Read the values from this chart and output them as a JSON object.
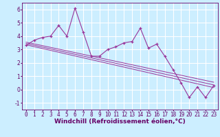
{
  "title": "",
  "xlabel": "Windchill (Refroidissement éolien,°C)",
  "ylabel": "",
  "bg_color": "#cceeff",
  "grid_color": "#ffffff",
  "line_color": "#993399",
  "xlim": [
    -0.5,
    23.5
  ],
  "ylim": [
    -1.5,
    6.5
  ],
  "yticks": [
    -1,
    0,
    1,
    2,
    3,
    4,
    5,
    6
  ],
  "xticks": [
    0,
    1,
    2,
    3,
    4,
    5,
    6,
    7,
    8,
    9,
    10,
    11,
    12,
    13,
    14,
    15,
    16,
    17,
    18,
    19,
    20,
    21,
    22,
    23
  ],
  "data_x": [
    0,
    1,
    2,
    3,
    4,
    5,
    6,
    7,
    8,
    9,
    10,
    11,
    12,
    13,
    14,
    15,
    16,
    17,
    18,
    19,
    20,
    21,
    22,
    23
  ],
  "data_y": [
    3.3,
    3.7,
    3.9,
    4.0,
    4.8,
    4.0,
    6.1,
    4.3,
    2.5,
    2.5,
    3.0,
    3.2,
    3.5,
    3.6,
    4.6,
    3.1,
    3.4,
    2.5,
    1.5,
    0.5,
    -0.6,
    0.2,
    -0.6,
    0.3
  ],
  "reg_lines": [
    {
      "x0": 0,
      "y0": 3.55,
      "x1": 23,
      "y1": 0.55
    },
    {
      "x0": 0,
      "y0": 3.45,
      "x1": 23,
      "y1": 0.35
    },
    {
      "x0": 0,
      "y0": 3.35,
      "x1": 23,
      "y1": 0.15
    }
  ],
  "xlabel_fontsize": 6.5,
  "tick_fontsize": 5.5,
  "xlabel_color": "#660066",
  "tick_color": "#660066",
  "spine_color": "#660066"
}
